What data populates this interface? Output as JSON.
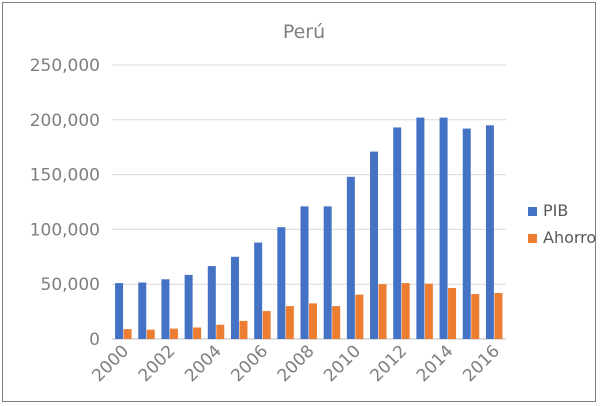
{
  "chart_data": {
    "type": "bar",
    "title": "Perú",
    "categories": [
      "2000",
      "2001",
      "2002",
      "2003",
      "2004",
      "2005",
      "2006",
      "2007",
      "2008",
      "2009",
      "2010",
      "2011",
      "2012",
      "2013",
      "2014",
      "2015",
      "2016"
    ],
    "x_tick_labels": [
      "2000",
      "2002",
      "2004",
      "2006",
      "2008",
      "2010",
      "2012",
      "2014",
      "2016"
    ],
    "y_tick_labels": [
      "0",
      "50,000",
      "100,000",
      "150,000",
      "200,000",
      "250,000"
    ],
    "ylim": [
      0,
      250000
    ],
    "grid": true,
    "legend_position": "right",
    "series": [
      {
        "name": "PIB",
        "color": "#4472C4",
        "values": [
          51000,
          51500,
          54500,
          58500,
          66500,
          75000,
          88000,
          102000,
          121000,
          121000,
          148000,
          171000,
          193000,
          202000,
          202000,
          192000,
          195000
        ]
      },
      {
        "name": "Ahorro",
        "color": "#ED7D31",
        "values": [
          9000,
          8500,
          9500,
          10500,
          13000,
          16500,
          25500,
          30000,
          32500,
          30000,
          40500,
          50000,
          51000,
          50500,
          46500,
          41000,
          42000
        ]
      }
    ]
  }
}
